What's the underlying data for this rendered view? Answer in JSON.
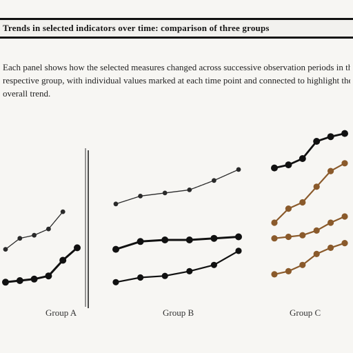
{
  "header": {
    "title": "Trends in selected indicators over time: comparison of three groups"
  },
  "description": {
    "lines": [
      "Each panel shows how the selected measures changed across successive observation periods in the",
      "respective group, with individual values marked at each time point and connected to highlight the",
      "overall trend."
    ]
  },
  "chart_data": {
    "type": "line",
    "panels": [
      {
        "label": "Group A",
        "x": [
          1,
          2,
          3,
          4,
          5,
          6
        ],
        "ylim": [
          0,
          10
        ],
        "series": [
          {
            "color": "#2a2a2a",
            "width": 1.3,
            "dashed": true,
            "values": [
              3.1,
              3.8,
              4.0,
              4.4,
              5.5,
              null
            ]
          },
          {
            "color": "#111111",
            "width": 3.0,
            "dashed": false,
            "values": [
              1.0,
              1.1,
              1.2,
              1.4,
              2.4,
              3.2
            ]
          }
        ]
      },
      {
        "label": "Group B",
        "x": [
          1,
          2,
          3,
          4,
          5,
          6
        ],
        "ylim": [
          0,
          10
        ],
        "series": [
          {
            "color": "#2a2a2a",
            "width": 1.3,
            "dashed": true,
            "values": [
              6.0,
              6.5,
              6.7,
              6.9,
              7.5,
              8.2
            ]
          },
          {
            "color": "#111111",
            "width": 3.0,
            "dashed": false,
            "values": [
              3.1,
              3.6,
              3.7,
              3.7,
              3.8,
              3.9
            ]
          },
          {
            "color": "#111111",
            "width": 2.2,
            "dashed": false,
            "values": [
              1.0,
              1.3,
              1.4,
              1.7,
              2.1,
              3.0
            ]
          }
        ]
      },
      {
        "label": "Group C",
        "x": [
          1,
          2,
          3,
          4,
          5,
          6
        ],
        "ylim": [
          0,
          10
        ],
        "series": [
          {
            "color": "#111111",
            "width": 2.8,
            "dashed": false,
            "values": [
              8.3,
              8.5,
              8.9,
              10.0,
              10.3,
              10.5
            ]
          },
          {
            "color": "#8a5a2b",
            "width": 2.2,
            "dashed": false,
            "values": [
              4.8,
              5.7,
              6.1,
              7.1,
              8.1,
              8.6
            ]
          },
          {
            "color": "#8a5a2b",
            "width": 2.2,
            "dashed": false,
            "values": [
              3.8,
              3.9,
              4.0,
              4.3,
              4.8,
              5.2
            ]
          },
          {
            "color": "#8a5a2b",
            "width": 2.2,
            "dashed": false,
            "values": [
              1.5,
              1.7,
              2.1,
              2.8,
              3.2,
              3.5
            ]
          }
        ]
      }
    ],
    "grid": false
  }
}
